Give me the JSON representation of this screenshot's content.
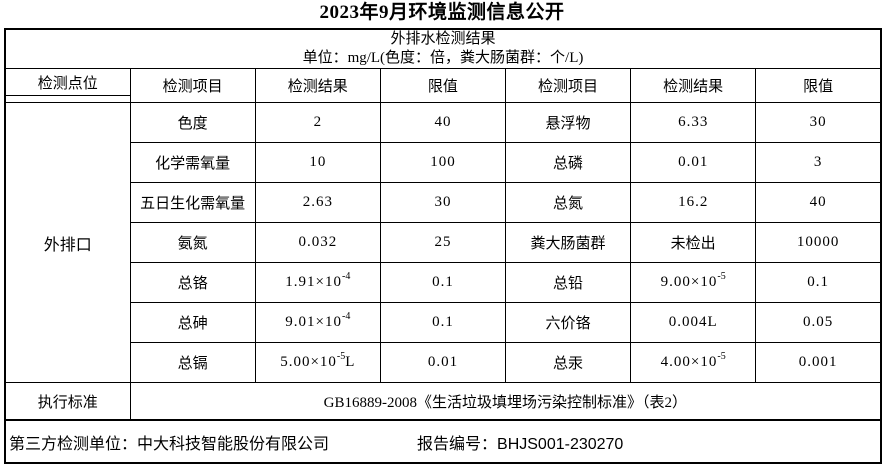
{
  "page_title": "2023年9月环境监测信息公开",
  "table": {
    "caption_line1": "外排水检测结果",
    "caption_line2": "单位：mg/L(色度：倍，粪大肠菌群：个/L)",
    "headers": [
      "检测点位",
      "检测项目",
      "检测结果",
      "限值",
      "检测项目",
      "检测结果",
      "限值"
    ],
    "site": "外排口",
    "rows": [
      {
        "l_item": "色度",
        "l_res": {
          "base": "2"
        },
        "l_limit": "40",
        "r_item": "悬浮物",
        "r_res": {
          "base": "6.33"
        },
        "r_limit": "30"
      },
      {
        "l_item": "化学需氧量",
        "l_res": {
          "base": "10"
        },
        "l_limit": "100",
        "r_item": "总磷",
        "r_res": {
          "base": "0.01"
        },
        "r_limit": "3"
      },
      {
        "l_item": "五日生化需氧量",
        "l_res": {
          "base": "2.63"
        },
        "l_limit": "30",
        "r_item": "总氮",
        "r_res": {
          "base": "16.2"
        },
        "r_limit": "40"
      },
      {
        "l_item": "氨氮",
        "l_res": {
          "base": "0.032"
        },
        "l_limit": "25",
        "r_item": "粪大肠菌群",
        "r_res": {
          "base": "未检出"
        },
        "r_limit": "10000"
      },
      {
        "l_item": "总铬",
        "l_res": {
          "base": "1.91×10",
          "exp": "-4"
        },
        "l_limit": "0.1",
        "r_item": "总铅",
        "r_res": {
          "base": "9.00×10",
          "exp": "-5"
        },
        "r_limit": "0.1"
      },
      {
        "l_item": "总砷",
        "l_res": {
          "base": "9.01×10",
          "exp": "-4"
        },
        "l_limit": "0.1",
        "r_item": "六价铬",
        "r_res": {
          "base": "0.004L"
        },
        "r_limit": "0.05"
      },
      {
        "l_item": "总镉",
        "l_res": {
          "base": "5.00×10",
          "exp": "-5",
          "suffix": "L"
        },
        "l_limit": "0.01",
        "r_item": "总汞",
        "r_res": {
          "base": "4.00×10",
          "exp": "-5"
        },
        "r_limit": "0.001"
      }
    ],
    "standard_label": "执行标准",
    "standard_value": "GB16889-2008《生活垃圾填埋场污染控制标准》（表2）"
  },
  "footer": {
    "third_party_label": "第三方检测单位：",
    "third_party_value": "中大科技智能股份有限公司",
    "report_label": "报告编号：",
    "report_value": "BHJS001-230270"
  },
  "colors": {
    "text": "#000000",
    "border": "#000000",
    "background": "#ffffff"
  }
}
